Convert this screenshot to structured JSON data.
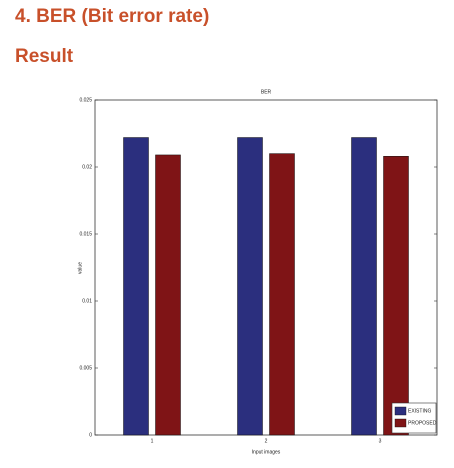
{
  "header": {
    "title": "4. BER (Bit error rate)",
    "subtitle": "Result"
  },
  "chart_data": {
    "type": "bar",
    "title": "BER",
    "xlabel": "Input images",
    "ylabel": "value",
    "categories": [
      "1",
      "2",
      "3"
    ],
    "series": [
      {
        "name": "EXISTING",
        "color": "#2b2f7e",
        "values": [
          0.0222,
          0.0222,
          0.0222
        ]
      },
      {
        "name": "PROPOSED",
        "color": "#7f1416",
        "values": [
          0.0209,
          0.021,
          0.0208
        ]
      }
    ],
    "ylim": [
      0,
      0.025
    ],
    "yticks": [
      0,
      0.005,
      0.01,
      0.015,
      0.02,
      0.025
    ],
    "grid": false,
    "legend": "lower right"
  }
}
